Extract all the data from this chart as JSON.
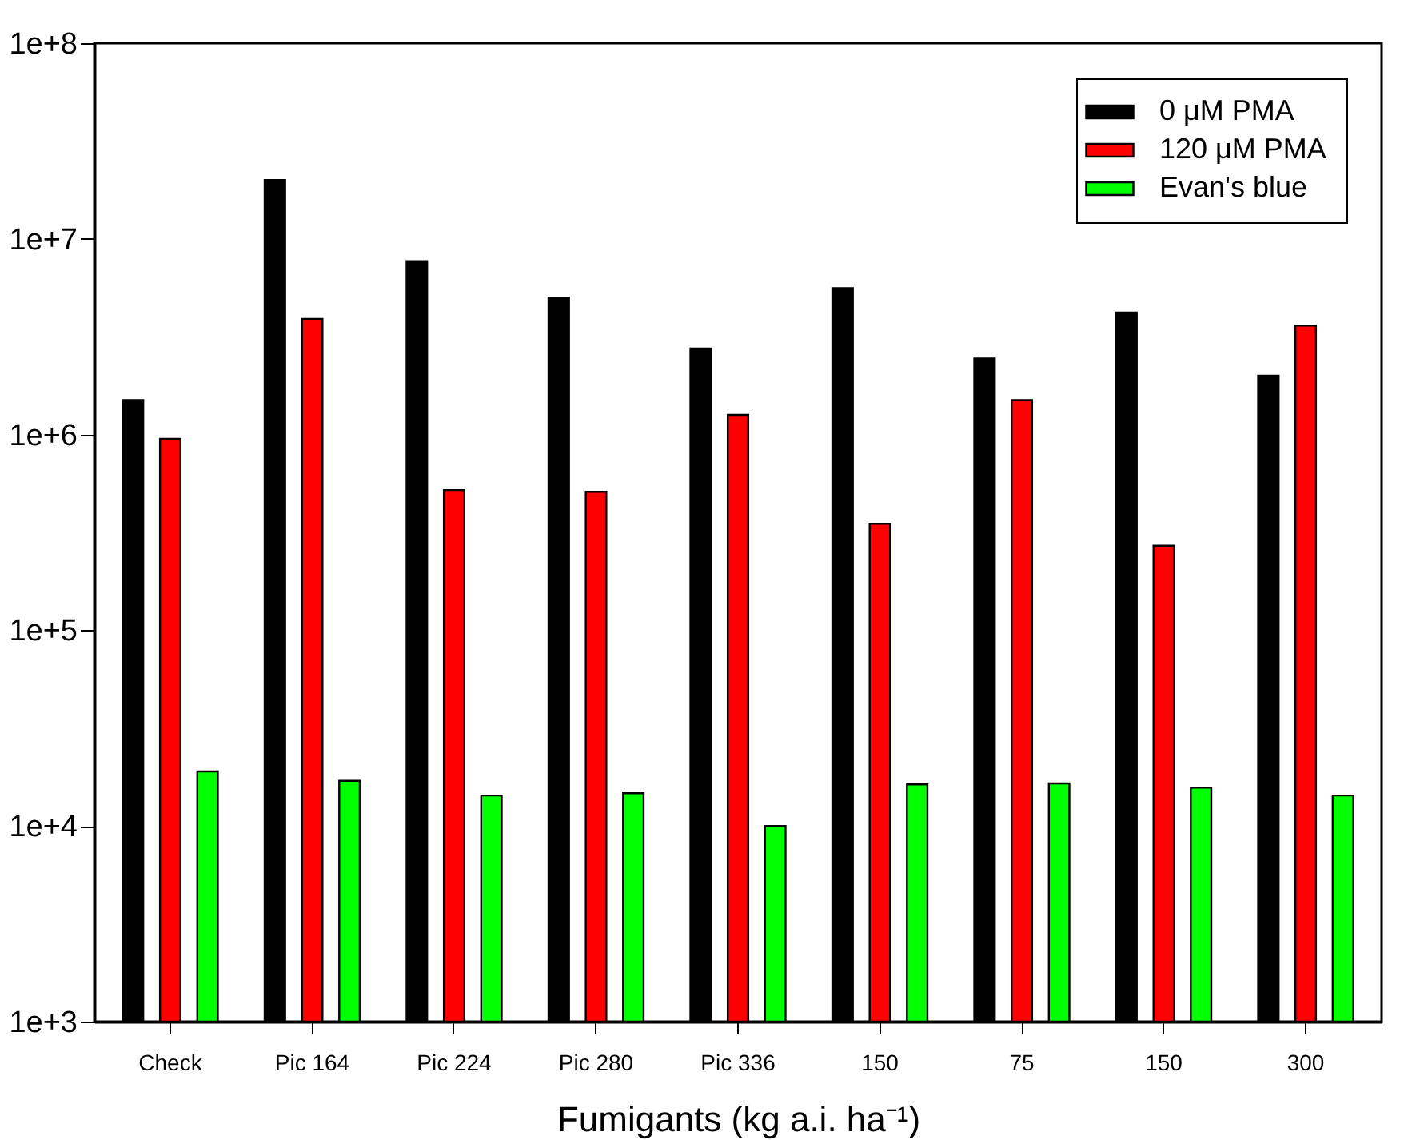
{
  "chart_data": {
    "type": "bar",
    "xlabel": "Fumigants (kg a.i. ha⁻¹)",
    "categories": [
      "Check",
      "Pic 164",
      "Pic 224",
      "Pic 280",
      "Pic 336",
      "150",
      "75",
      "150",
      "300"
    ],
    "series": [
      {
        "name": "0 μM PMA",
        "color": "#000000",
        "values": [
          1500000,
          20000000,
          7700000,
          5000000,
          2750000,
          5600000,
          2450000,
          4200000,
          2000000
        ]
      },
      {
        "name": "120 μM PMA",
        "color": "#ff0000",
        "values": [
          950000,
          3900000,
          520000,
          510000,
          1260000,
          350000,
          1500000,
          270000,
          3600000
        ]
      },
      {
        "name": "Evan's blue",
        "color": "#00ff00",
        "values": [
          19000,
          17000,
          14300,
          14700,
          10000,
          16300,
          16500,
          15700,
          14300
        ]
      }
    ],
    "log": true,
    "ylim": [
      1000,
      100000000
    ],
    "yticks": [
      {
        "value": 1000,
        "label": "1e+3"
      },
      {
        "value": 10000,
        "label": "1e+4"
      },
      {
        "value": 100000,
        "label": "1e+5"
      },
      {
        "value": 1000000,
        "label": "1e+6"
      },
      {
        "value": 10000000,
        "label": "1e+7"
      },
      {
        "value": 100000000,
        "label": "1e+8"
      }
    ],
    "grid": false,
    "legend": "top right"
  }
}
